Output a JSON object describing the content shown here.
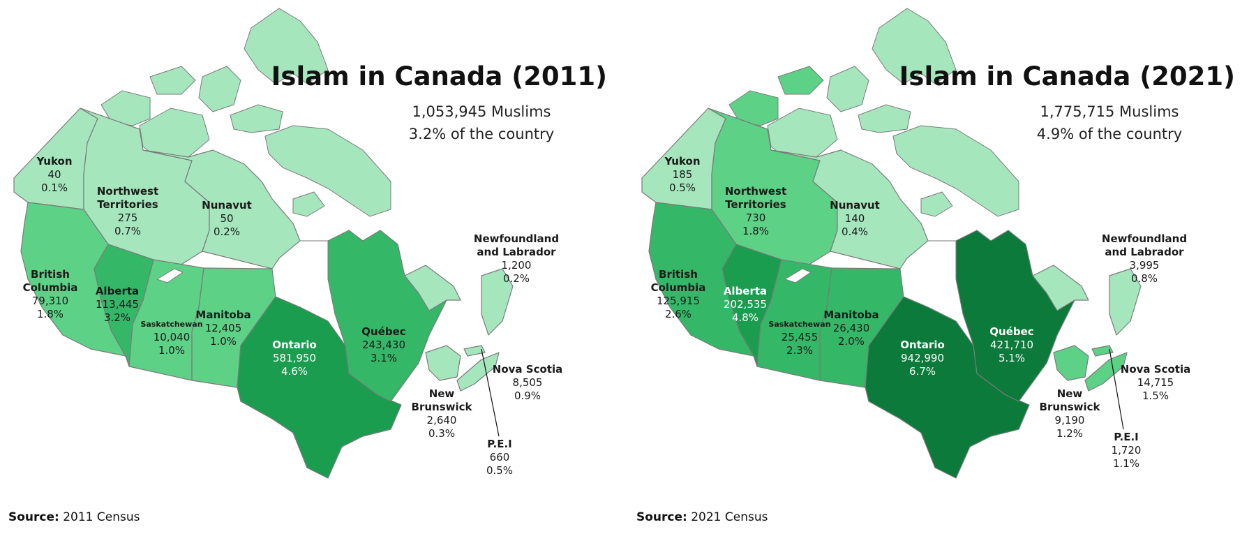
{
  "maps": [
    {
      "title": "Islam in Canada (2011)",
      "total": "1,053,945 Muslims",
      "share": "3.2% of the country",
      "source_label": "Source:",
      "source_text": "2011 Census",
      "provinces": {
        "yukon": {
          "name": "Yukon",
          "count": "40",
          "pct": "0.1%",
          "color": "#a6e6bd"
        },
        "nwt": {
          "name1": "Northwest",
          "name2": "Territories",
          "count": "275",
          "pct": "0.7%",
          "color": "#a6e6bd"
        },
        "nunavut": {
          "name": "Nunavut",
          "count": "50",
          "pct": "0.2%",
          "color": "#a6e6bd"
        },
        "bc": {
          "name1": "British",
          "name2": "Columbia",
          "count": "79,310",
          "pct": "1.8%",
          "color": "#5dd186"
        },
        "alberta": {
          "name": "Alberta",
          "count": "113,445",
          "pct": "3.2%",
          "color": "#34b868"
        },
        "sask": {
          "name": "Saskatchewan",
          "count": "10,040",
          "pct": "1.0%",
          "color": "#5dd186"
        },
        "manitoba": {
          "name": "Manitoba",
          "count": "12,405",
          "pct": "1.0%",
          "color": "#5dd186"
        },
        "ontario": {
          "name": "Ontario",
          "count": "581,950",
          "pct": "4.6%",
          "color": "#1a9d4f"
        },
        "quebec": {
          "name": "Québec",
          "count": "243,430",
          "pct": "3.1%",
          "color": "#34b868"
        },
        "nl": {
          "name1": "Newfoundland",
          "name2": "and Labrador",
          "count": "1,200",
          "pct": "0.2%",
          "color": "#a6e6bd"
        },
        "nb": {
          "name1": "New",
          "name2": "Brunswick",
          "count": "2,640",
          "pct": "0.3%",
          "color": "#a6e6bd"
        },
        "ns": {
          "name": "Nova Scotia",
          "count": "8,505",
          "pct": "0.9%",
          "color": "#a6e6bd"
        },
        "pei": {
          "name": "P.E.I",
          "count": "660",
          "pct": "0.5%",
          "color": "#a6e6bd"
        }
      }
    },
    {
      "title": "Islam in Canada (2021)",
      "total": "1,775,715 Muslims",
      "share": "4.9% of the country",
      "source_label": "Source:",
      "source_text": "2021 Census",
      "provinces": {
        "yukon": {
          "name": "Yukon",
          "count": "185",
          "pct": "0.5%",
          "color": "#a6e6bd"
        },
        "nwt": {
          "name1": "Northwest",
          "name2": "Territories",
          "count": "730",
          "pct": "1.8%",
          "color": "#5dd186"
        },
        "nunavut": {
          "name": "Nunavut",
          "count": "140",
          "pct": "0.4%",
          "color": "#a6e6bd"
        },
        "bc": {
          "name1": "British",
          "name2": "Columbia",
          "count": "125,915",
          "pct": "2.6%",
          "color": "#34b868"
        },
        "alberta": {
          "name": "Alberta",
          "count": "202,535",
          "pct": "4.8%",
          "color": "#1a9d4f"
        },
        "sask": {
          "name": "Saskatchewan",
          "count": "25,455",
          "pct": "2.3%",
          "color": "#34b868"
        },
        "manitoba": {
          "name": "Manitoba",
          "count": "26,430",
          "pct": "2.0%",
          "color": "#34b868"
        },
        "ontario": {
          "name": "Ontario",
          "count": "942,990",
          "pct": "6.7%",
          "color": "#0b7a3a"
        },
        "quebec": {
          "name": "Québec",
          "count": "421,710",
          "pct": "5.1%",
          "color": "#0b7a3a"
        },
        "nl": {
          "name1": "Newfoundland",
          "name2": "and Labrador",
          "count": "3,995",
          "pct": "0.8%",
          "color": "#a6e6bd"
        },
        "nb": {
          "name1": "New",
          "name2": "Brunswick",
          "count": "9,190",
          "pct": "1.2%",
          "color": "#5dd186"
        },
        "ns": {
          "name": "Nova Scotia",
          "count": "14,715",
          "pct": "1.5%",
          "color": "#5dd186"
        },
        "pei": {
          "name": "P.E.I",
          "count": "1,720",
          "pct": "1.1%",
          "color": "#5dd186"
        }
      }
    }
  ]
}
